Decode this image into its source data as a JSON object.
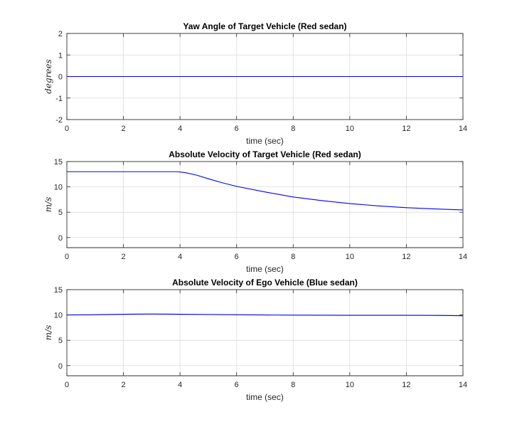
{
  "chart_data": [
    {
      "type": "line",
      "title": "Yaw Angle of Target Vehicle (Red sedan)",
      "xlabel": "time (sec)",
      "ylabel": "degrees",
      "xlim": [
        0,
        14
      ],
      "ylim": [
        -2,
        2
      ],
      "xticks": [
        "0",
        "2",
        "4",
        "6",
        "8",
        "10",
        "12",
        "14"
      ],
      "yticks": [
        "-2",
        "-1",
        "0",
        "1",
        "2"
      ],
      "grid": true,
      "line_color": "#0000ff",
      "series": [
        {
          "x": [
            0,
            14
          ],
          "y": [
            0,
            0
          ]
        }
      ]
    },
    {
      "type": "line",
      "title": "Absolute Velocity of Target Vehicle (Red sedan)",
      "xlabel": "time (sec)",
      "ylabel": "m/s",
      "xlim": [
        0,
        14
      ],
      "ylim": [
        -2,
        15
      ],
      "xticks": [
        "0",
        "2",
        "4",
        "6",
        "8",
        "10",
        "12",
        "14"
      ],
      "yticks": [
        "0",
        "5",
        "10",
        "15"
      ],
      "grid": true,
      "line_color": "#0000ff",
      "series": [
        {
          "x": [
            0,
            3.9,
            4.2,
            4.6,
            5.0,
            5.5,
            6.0,
            7.0,
            8.0,
            9.0,
            10.0,
            11.0,
            12.0,
            13.0,
            14.0
          ],
          "y": [
            13.0,
            13.0,
            12.8,
            12.3,
            11.6,
            10.8,
            10.1,
            9.0,
            8.0,
            7.3,
            6.7,
            6.25,
            5.9,
            5.65,
            5.45
          ]
        }
      ]
    },
    {
      "type": "line",
      "title": "Absolute Velocity of Ego Vehicle (Blue sedan)",
      "xlabel": "time (sec)",
      "ylabel": "m/s",
      "xlim": [
        0,
        14
      ],
      "ylim": [
        -2,
        15
      ],
      "xticks": [
        "0",
        "2",
        "4",
        "6",
        "8",
        "10",
        "12",
        "14"
      ],
      "yticks": [
        "0",
        "5",
        "10",
        "15"
      ],
      "grid": true,
      "line_color": "#0000ff",
      "series": [
        {
          "x": [
            0,
            1,
            2,
            3,
            4,
            5,
            6,
            7,
            8,
            9,
            10,
            11,
            12,
            13,
            14
          ],
          "y": [
            10.0,
            10.05,
            10.15,
            10.2,
            10.15,
            10.1,
            10.05,
            10.0,
            9.97,
            9.95,
            9.93,
            9.93,
            9.93,
            9.92,
            9.85
          ]
        }
      ]
    }
  ]
}
